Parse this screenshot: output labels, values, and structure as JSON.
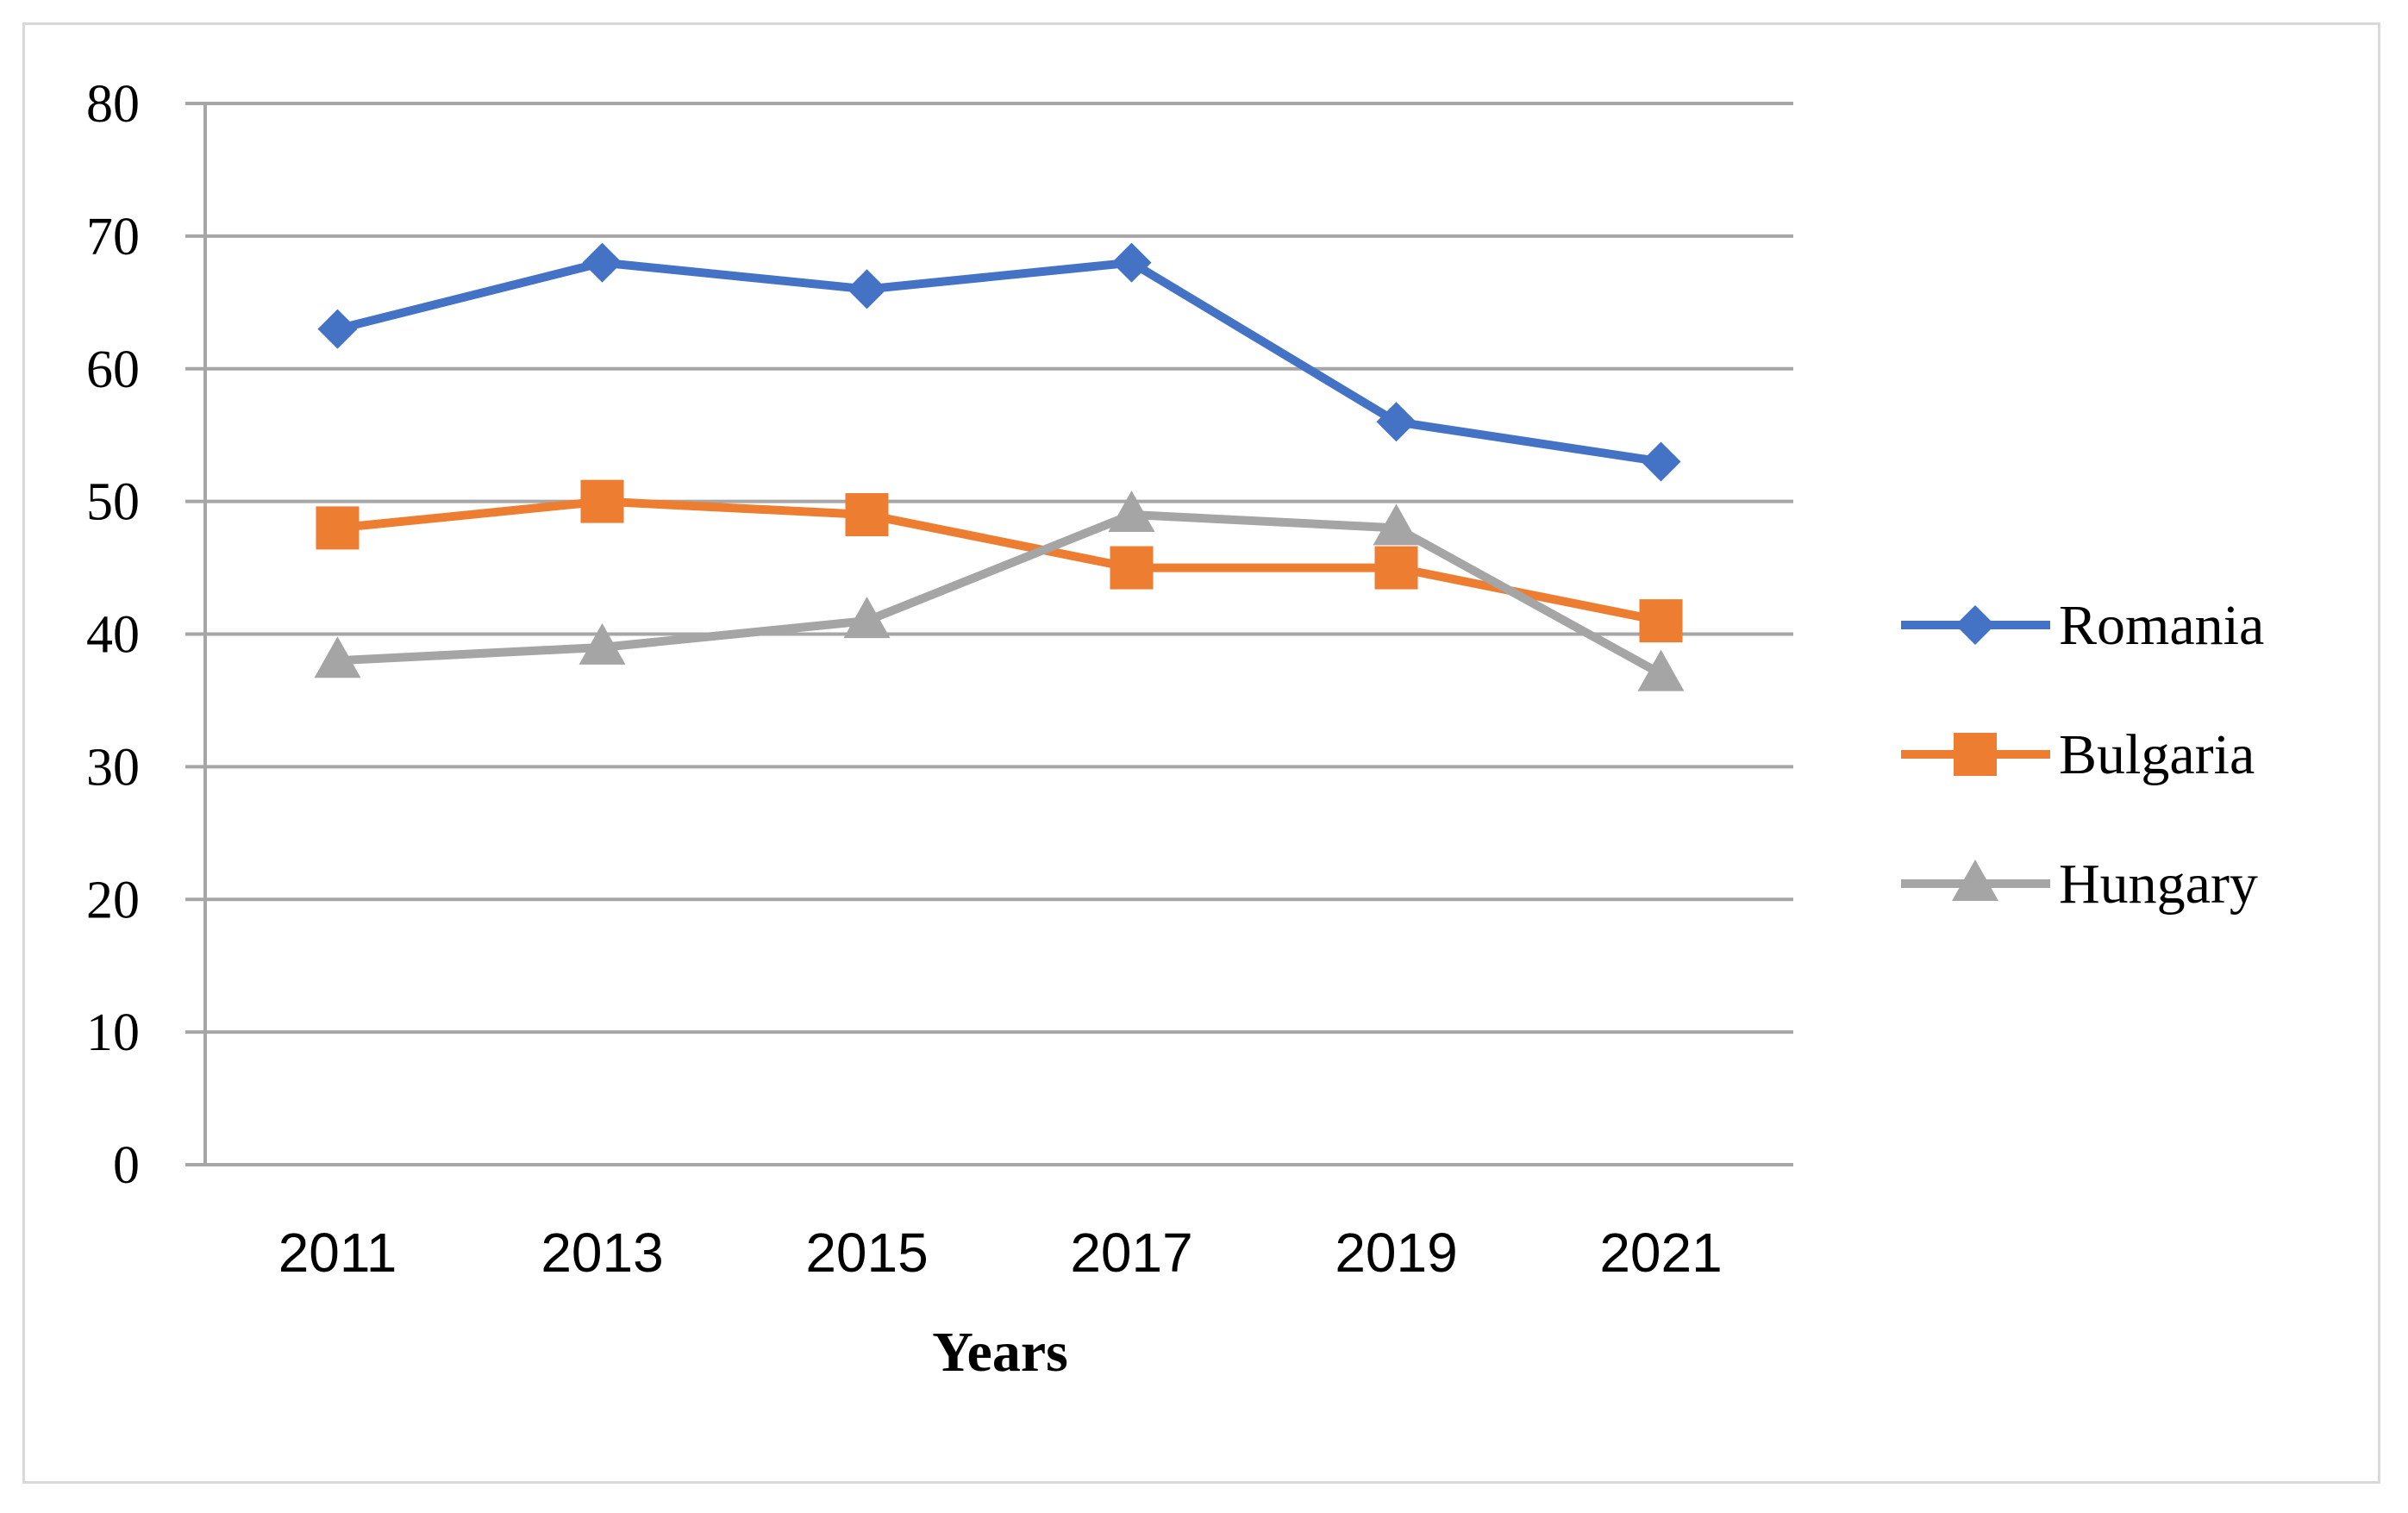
{
  "chart_data": {
    "type": "line",
    "title": "",
    "xlabel": "Years",
    "ylabel": "",
    "categories": [
      "2011",
      "2013",
      "2015",
      "2017",
      "2019",
      "2021"
    ],
    "ylim": [
      0,
      80
    ],
    "yticks": [
      0,
      10,
      20,
      30,
      40,
      50,
      60,
      70,
      80
    ],
    "grid": true,
    "legend_position": "right",
    "series": [
      {
        "name": "Romania",
        "color": "#4472c4",
        "marker": "diamond",
        "values": [
          63,
          68,
          66,
          68,
          56,
          53
        ]
      },
      {
        "name": "Bulgaria",
        "color": "#ed7d31",
        "marker": "square",
        "values": [
          48,
          50,
          49,
          45,
          45,
          41
        ]
      },
      {
        "name": "Hungary",
        "color": "#a5a5a5",
        "marker": "triangle",
        "values": [
          38,
          39,
          41,
          49,
          48,
          37
        ]
      }
    ]
  }
}
